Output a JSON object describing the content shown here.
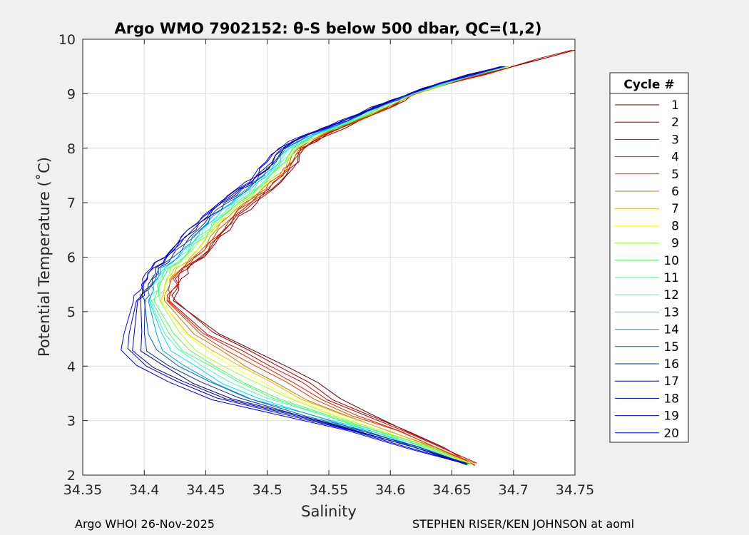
{
  "chart_data": {
    "type": "line",
    "title": "Argo WMO 7902152: θ-S below 500 dbar,  QC=(1,2)",
    "xlabel": "Salinity",
    "ylabel": "Potential Temperature (˚C)",
    "xlim": [
      34.35,
      34.75
    ],
    "ylim": [
      2,
      10
    ],
    "xticks": [
      "34.35",
      "34.4",
      "34.45",
      "34.5",
      "34.55",
      "34.6",
      "34.65",
      "34.7",
      "34.75"
    ],
    "yticks": [
      "2",
      "3",
      "4",
      "5",
      "6",
      "7",
      "8",
      "9",
      "10"
    ],
    "grid": true,
    "legend": {
      "title": "Cycle #",
      "placement": "right",
      "entries": [
        "1",
        "2",
        "3",
        "4",
        "5",
        "6",
        "7",
        "8",
        "9",
        "10",
        "11",
        "12",
        "13",
        "14",
        "15",
        "16",
        "17",
        "18",
        "19",
        "20"
      ]
    },
    "colors": [
      "#6b0000",
      "#a00000",
      "#d00000",
      "#e02000",
      "#e04000",
      "#c87800",
      "#e0c000",
      "#ffff33",
      "#a0ff40",
      "#50ff50",
      "#40ff80",
      "#40ffc0",
      "#00e0ff",
      "#00a0e0",
      "#0060c0",
      "#0030a0",
      "#000090",
      "#0000b0",
      "#0000d0",
      "#0000ff"
    ],
    "upper_branch": {
      "temperature": [
        9.8,
        9.5,
        9.2,
        9.0,
        8.75,
        8.5,
        8.25,
        8.0,
        7.75,
        7.5,
        7.25,
        7.0,
        6.75,
        6.5,
        6.25,
        6.0,
        5.8,
        5.6,
        5.4,
        5.2
      ],
      "salinity_min": [
        34.74,
        34.69,
        34.64,
        34.615,
        34.585,
        34.56,
        34.53,
        34.51,
        34.5,
        34.49,
        34.475,
        34.46,
        34.447,
        34.435,
        34.425,
        34.415,
        34.405,
        34.4,
        34.396,
        34.392
      ],
      "salinity_max": [
        34.75,
        34.7,
        34.65,
        34.62,
        34.6,
        34.575,
        34.55,
        34.53,
        34.525,
        34.515,
        34.505,
        34.49,
        34.478,
        34.468,
        34.458,
        34.448,
        34.436,
        34.43,
        34.428,
        34.425
      ]
    },
    "lower_branch": {
      "temperature": [
        5.2,
        4.6,
        4.3,
        4.0,
        3.7,
        3.4,
        3.1,
        2.8,
        2.5,
        2.2
      ],
      "salinity_min": [
        34.392,
        34.385,
        34.38,
        34.395,
        34.42,
        34.455,
        34.51,
        34.565,
        34.615,
        34.66
      ],
      "salinity_max": [
        34.425,
        34.46,
        34.49,
        34.515,
        34.54,
        34.56,
        34.585,
        34.615,
        34.645,
        34.67
      ]
    }
  },
  "footer": {
    "left": "Argo WHOI 26-Nov-2025",
    "right": "STEPHEN RISER/KEN JOHNSON at aoml"
  }
}
